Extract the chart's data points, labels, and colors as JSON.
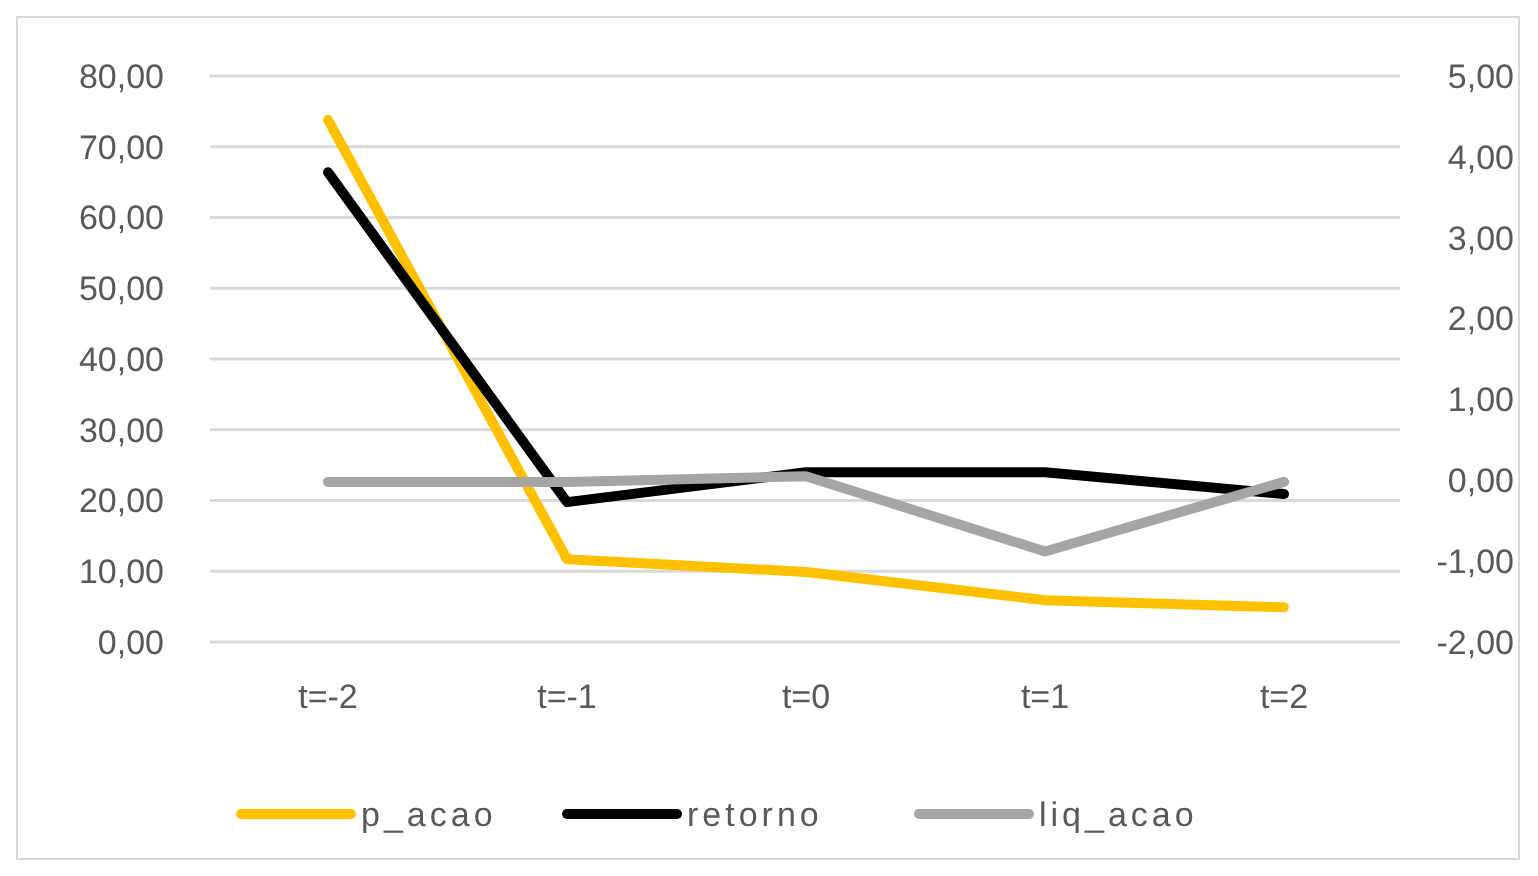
{
  "chart_data": {
    "type": "line",
    "categories": [
      "t=-2",
      "t=-1",
      "t=0",
      "t=1",
      "t=2"
    ],
    "series": [
      {
        "name": "p_acao",
        "color": "#ffc000",
        "values": [
          73.8,
          11.7,
          9.9,
          5.9,
          4.9
        ]
      },
      {
        "name": "retorno",
        "color": "#000000",
        "axis": "y2",
        "values": [
          3.81,
          -0.27,
          0.1,
          0.1,
          -0.17
        ]
      },
      {
        "name": "liq_acao",
        "color": "#a5a5a5",
        "axis": "y2",
        "values": [
          -0.02,
          -0.02,
          0.05,
          -0.88,
          -0.02
        ]
      }
    ],
    "ylim": [
      0,
      80
    ],
    "yticks": [
      {
        "value": 0,
        "label": "0,00"
      },
      {
        "value": 10,
        "label": "10,00"
      },
      {
        "value": 20,
        "label": "20,00"
      },
      {
        "value": 30,
        "label": "30,00"
      },
      {
        "value": 40,
        "label": "40,00"
      },
      {
        "value": 50,
        "label": "50,00"
      },
      {
        "value": 60,
        "label": "60,00"
      },
      {
        "value": 70,
        "label": "70,00"
      },
      {
        "value": 80,
        "label": "80,00"
      }
    ],
    "y2lim": [
      -2,
      5
    ],
    "y2ticks": [
      {
        "value": -2,
        "label": "-2,00"
      },
      {
        "value": -1,
        "label": "-1,00"
      },
      {
        "value": 0,
        "label": "0,00"
      },
      {
        "value": 1,
        "label": "1,00"
      },
      {
        "value": 2,
        "label": "2,00"
      },
      {
        "value": 3,
        "label": "3,00"
      },
      {
        "value": 4,
        "label": "4,00"
      },
      {
        "value": 5,
        "label": "5,00"
      }
    ],
    "grid": "y",
    "legend": "bottom",
    "marker": "none",
    "line_style": "solid"
  }
}
